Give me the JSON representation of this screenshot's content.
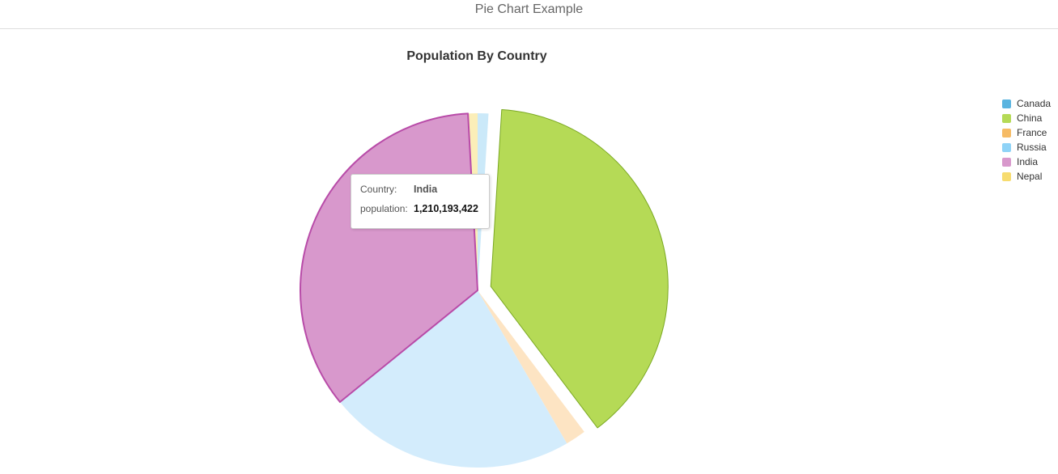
{
  "page": {
    "header_title": "Pie Chart Example"
  },
  "chart_data": {
    "type": "pie",
    "title": "Population By Country",
    "categories": [
      "Canada",
      "China",
      "France",
      "Russia",
      "India",
      "Nepal"
    ],
    "values": [
      34000000,
      1340000000,
      65000000,
      780000000,
      1210193422,
      30000000
    ],
    "colors": [
      "#5ab4e0",
      "#b5da56",
      "#f6bb65",
      "#8fd3f7",
      "#d898cc",
      "#f7dc6f"
    ],
    "slice_colors": [
      "#cbe9f9",
      "#b5da56",
      "#fde4c3",
      "#d3ecfc",
      "#d898cc",
      "#fbeeb8"
    ],
    "exploded": "China",
    "highlighted": "India",
    "legend_position": "right"
  },
  "tooltip": {
    "country_label": "Country:",
    "country_value": "India",
    "population_label": "population:",
    "population_value": "1,210,193,422"
  }
}
